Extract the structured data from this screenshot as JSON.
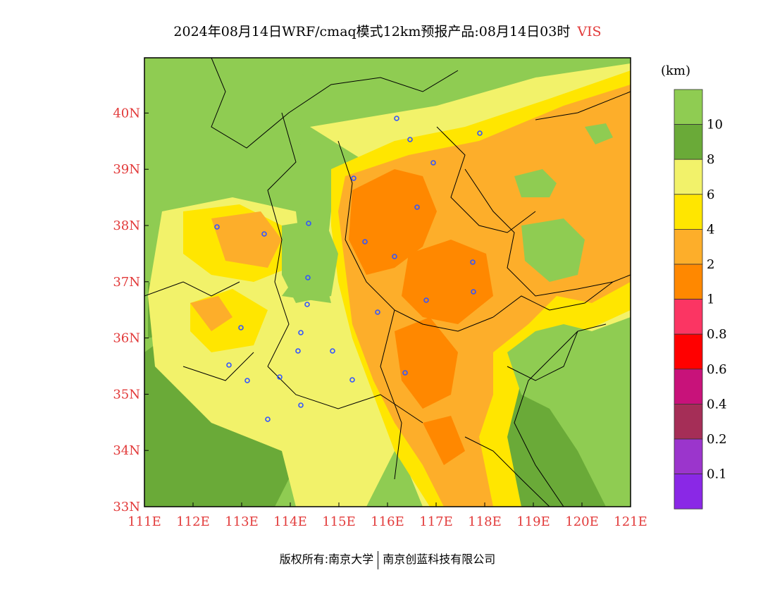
{
  "title": {
    "main": "2024年08月14日WRF/cmaq模式12km预报产品:08月14日03时",
    "variable": "VIS"
  },
  "map": {
    "lon_labels": [
      "111E",
      "112E",
      "113E",
      "114E",
      "115E",
      "116E",
      "117E",
      "118E",
      "119E",
      "120E",
      "121E"
    ],
    "lat_labels": [
      "33N",
      "34N",
      "35N",
      "36N",
      "37N",
      "38N",
      "39N",
      "40N"
    ],
    "background_color": "#8fcc52"
  },
  "legend": {
    "unit": "(km)",
    "bins": [
      {
        "color": "#8fcc52",
        "label": "10"
      },
      {
        "color": "#6aaa38",
        "label": "8"
      },
      {
        "color": "#f2f26a",
        "label": "6"
      },
      {
        "color": "#ffe600",
        "label": "4"
      },
      {
        "color": "#fdae2a",
        "label": "2"
      },
      {
        "color": "#ff8800",
        "label": "1"
      },
      {
        "color": "#fb3563",
        "label": "0.8"
      },
      {
        "color": "#ff0000",
        "label": "0.6"
      },
      {
        "color": "#c8127a",
        "label": "0.4"
      },
      {
        "color": "#a52e57",
        "label": "0.2"
      },
      {
        "color": "#9b35cc",
        "label": "0.1"
      },
      {
        "color": "#8a28e6",
        "label": ""
      }
    ]
  },
  "footer": {
    "left": "版权所有:南京大学",
    "right": "南京创蓝科技有限公司"
  }
}
